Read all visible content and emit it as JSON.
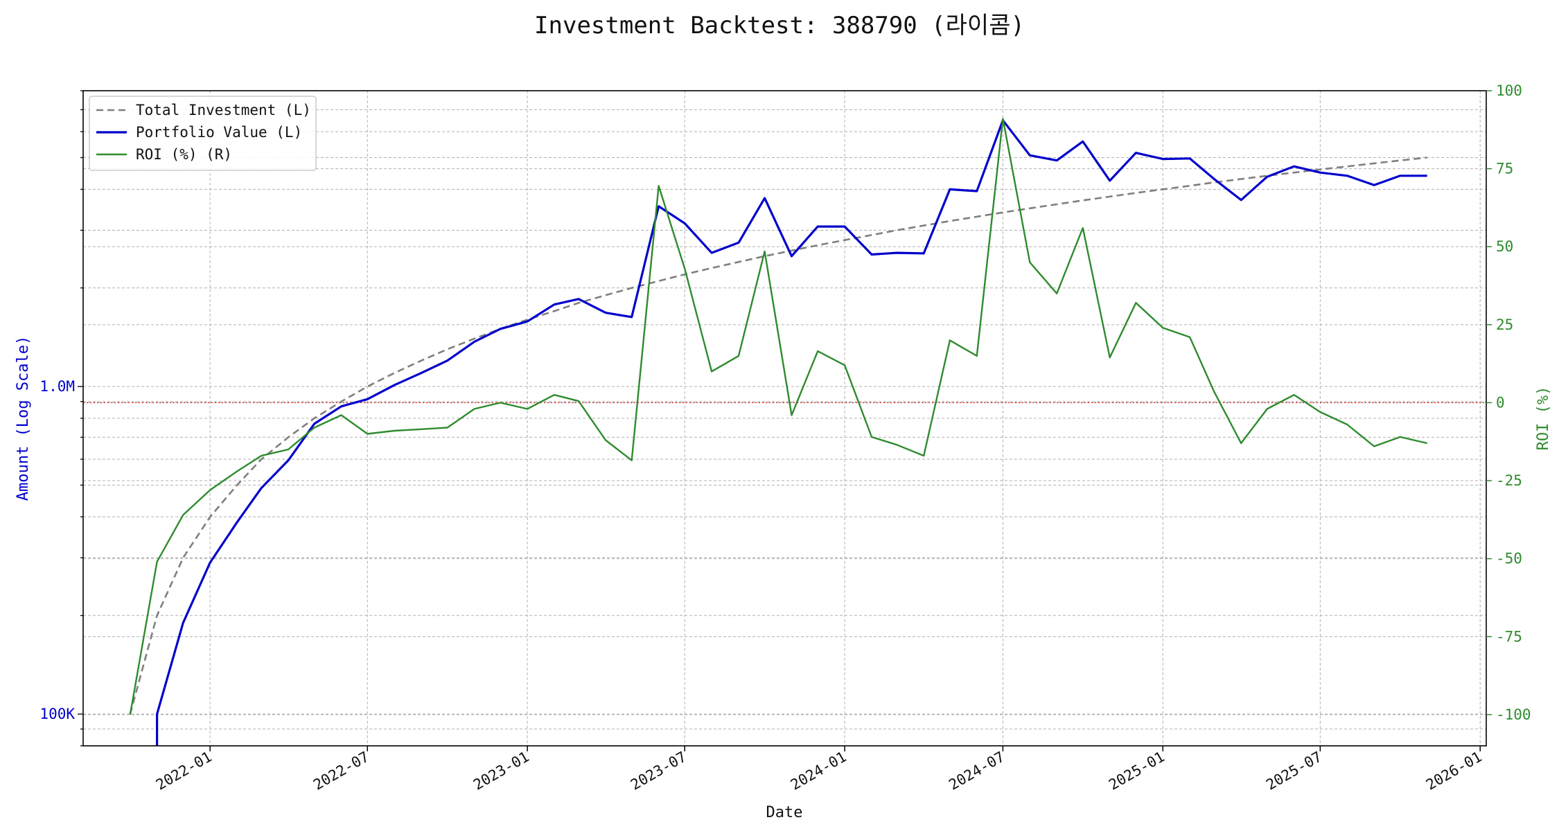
{
  "chart_data": {
    "type": "line",
    "title": "Investment Backtest: 388790 (라이콤)",
    "xlabel": "Date",
    "ylabel_left": "Amount (Log Scale)",
    "ylabel_right": "ROI (%)",
    "x_tick_labels": [
      "2022-01",
      "2022-07",
      "2023-01",
      "2023-07",
      "2024-01",
      "2024-07",
      "2025-01",
      "2025-07",
      "2026-01"
    ],
    "y_left_tick_labels": [
      "100K",
      "1.0M"
    ],
    "y_right_tick_labels": [
      "-100",
      "-75",
      "-50",
      "-25",
      "0",
      "25",
      "50",
      "75",
      "100"
    ],
    "y_left_scale": "log",
    "y_left_lim": [
      80000,
      8000000
    ],
    "y_right_lim": [
      -110,
      100
    ],
    "x_lim": [
      "2021-08-08",
      "2026-01-08"
    ],
    "grid": true,
    "legend_position": "top-left",
    "zero_line": {
      "y_right": 0,
      "color": "#d62728",
      "style": "dotted"
    },
    "x": [
      "2021-10-01",
      "2021-11-01",
      "2021-12-01",
      "2022-01-01",
      "2022-02-01",
      "2022-03-01",
      "2022-04-01",
      "2022-05-01",
      "2022-06-01",
      "2022-07-01",
      "2022-08-01",
      "2022-09-01",
      "2022-10-01",
      "2022-11-01",
      "2022-12-01",
      "2023-01-01",
      "2023-02-01",
      "2023-03-01",
      "2023-04-01",
      "2023-05-01",
      "2023-06-01",
      "2023-07-01",
      "2023-08-01",
      "2023-09-01",
      "2023-10-01",
      "2023-11-01",
      "2023-12-01",
      "2024-01-01",
      "2024-02-01",
      "2024-03-01",
      "2024-04-01",
      "2024-05-01",
      "2024-06-01",
      "2024-07-01",
      "2024-08-01",
      "2024-09-01",
      "2024-10-01",
      "2024-11-01",
      "2024-12-01",
      "2025-01-01",
      "2025-02-01",
      "2025-03-01",
      "2025-04-01",
      "2025-05-01",
      "2025-06-01",
      "2025-07-01",
      "2025-08-01",
      "2025-09-01",
      "2025-10-01",
      "2025-11-01"
    ],
    "series": [
      {
        "name": "Total Investment (L)",
        "axis": "left",
        "color": "#7f7f7f",
        "style": "dashed",
        "values": [
          100000,
          200000,
          300000,
          400000,
          500000,
          600000,
          700000,
          800000,
          900000,
          1000000,
          1100000,
          1200000,
          1300000,
          1400000,
          1500000,
          1600000,
          1700000,
          1800000,
          1900000,
          2000000,
          2100000,
          2200000,
          2300000,
          2400000,
          2500000,
          2600000,
          2700000,
          2800000,
          2900000,
          3000000,
          3100000,
          3200000,
          3300000,
          3400000,
          3500000,
          3600000,
          3700000,
          3800000,
          3900000,
          4000000,
          4100000,
          4200000,
          4300000,
          4400000,
          4500000,
          4600000,
          4700000,
          4800000,
          4900000,
          5000000
        ]
      },
      {
        "name": "Portfolio Value (L)",
        "axis": "left",
        "color": "#0000cc",
        "style": "solid",
        "values": [
          null,
          100000,
          190000,
          290000,
          385000,
          490000,
          595000,
          770000,
          870000,
          915000,
          1010000,
          1100000,
          1200000,
          1370000,
          1500000,
          1580000,
          1780000,
          1850000,
          1680000,
          1630000,
          3550000,
          3150000,
          2560000,
          2750000,
          3760000,
          2500000,
          3080000,
          3080000,
          2530000,
          2560000,
          2550000,
          4000000,
          3950000,
          6500000,
          5080000,
          4900000,
          5600000,
          4250000,
          5170000,
          4950000,
          4970000,
          4300000,
          3710000,
          4370000,
          4700000,
          4500000,
          4400000,
          4120000,
          4400000,
          4400000
        ]
      },
      {
        "name": "ROI (%) (R)",
        "axis": "right",
        "color": "#2e8b2e",
        "style": "solid",
        "values": [
          -100,
          -51,
          -36,
          -28,
          -22,
          -17,
          -15,
          -8,
          -4,
          -10,
          -9,
          -8.5,
          -8,
          -2,
          0,
          -2,
          2.5,
          0.5,
          -12,
          -18.5,
          69.5,
          43,
          10,
          15,
          48.5,
          -4,
          16.5,
          12,
          -11,
          -13.5,
          -17,
          20,
          15,
          91,
          45,
          35,
          56,
          14.5,
          32,
          24,
          21,
          3.5,
          -13,
          -2,
          2.5,
          -3,
          -7,
          -14,
          -11,
          -13
        ]
      }
    ]
  }
}
